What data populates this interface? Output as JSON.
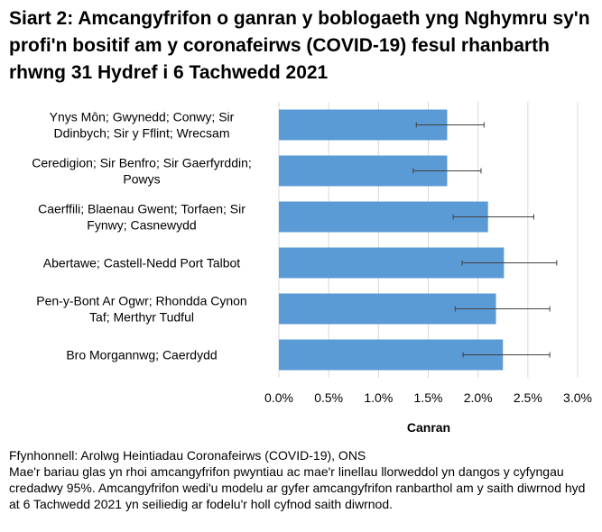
{
  "title": "Siart 2: Amcangyfrifon o ganran y boblogaeth yng Nghymru sy'n profi'n bositif am y coronafeirws (COVID-19) fesul rhanbarth rhwng 31 Hydref i 6 Tachwedd 2021",
  "footer": {
    "source": "Ffynhonnell: Arolwg Heintiadau Coronafeirws (COVID-19), ONS",
    "note": "Mae'r bariau glas yn rhoi amcangyfrifon pwyntiau ac mae'r linellau llorweddol yn dangos y cyfyngau credadwy 95%. Amcangyfrifon wedi'u modelu ar gyfer amcangyfrifon ranbarthol am y saith diwrnod hyd at 6 Tachwedd 2021 yn seiliedig ar fodelu'r holl cyfnod saith diwrnod."
  },
  "colors": {
    "bar": "#5b9bd5",
    "error_bar": "#404040",
    "grid": "#d9d9d9"
  },
  "chart_data": {
    "type": "bar",
    "orientation": "horizontal",
    "xlabel": "Canran",
    "ylabel": "",
    "xlim": [
      0,
      3.0
    ],
    "ticks": [
      "0.0%",
      "0.5%",
      "1.0%",
      "1.5%",
      "2.0%",
      "2.5%",
      "3.0%"
    ],
    "tick_values": [
      0,
      0.5,
      1.0,
      1.5,
      2.0,
      2.5,
      3.0
    ],
    "grid": true,
    "categories": [
      [
        "Ynys Môn; Gwynedd; Conwy; Sir",
        "Ddinbych; Sir y Fflint; Wrecsam"
      ],
      [
        "Ceredigion; Sir Benfro; Sir Gaerfyrddin;",
        "Powys"
      ],
      [
        "Caerffili; Blaenau Gwent; Torfaen; Sir",
        "Fynwy; Casnewydd"
      ],
      [
        "Abertawe; Castell-Nedd Port Talbot"
      ],
      [
        "Pen-y-Bont Ar Ogwr; Rhondda Cynon",
        "Taf; Merthyr Tudful"
      ],
      [
        "Bro Morgannwg; Caerdydd"
      ]
    ],
    "values": [
      1.69,
      1.69,
      2.1,
      2.26,
      2.18,
      2.25
    ],
    "lower": [
      1.38,
      1.35,
      1.75,
      1.84,
      1.77,
      1.85
    ],
    "upper": [
      2.06,
      2.03,
      2.56,
      2.79,
      2.72,
      2.72
    ]
  }
}
